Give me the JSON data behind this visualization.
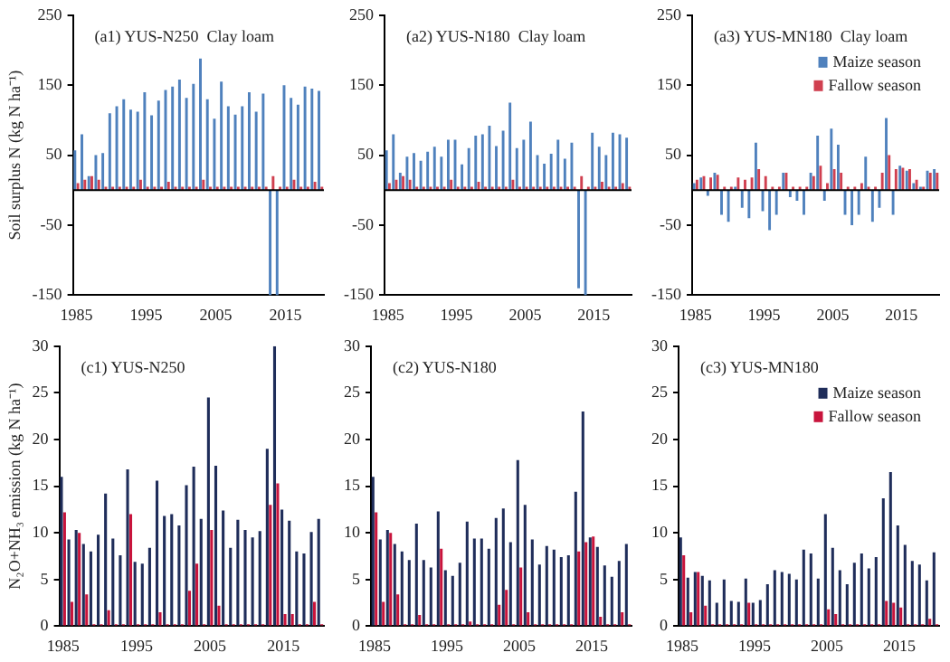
{
  "chart_data": [
    {
      "type": "bar",
      "title": "(a1) YUS-N250  Clay loam",
      "ylabel": "Soil surplus N (kg N ha⁻¹)",
      "categories": [
        "1985",
        null,
        null,
        null,
        null,
        null,
        null,
        null,
        null,
        null,
        "1995",
        null,
        null,
        null,
        null,
        null,
        null,
        null,
        null,
        null,
        "2005",
        null,
        null,
        null,
        null,
        null,
        null,
        null,
        null,
        null,
        "2015",
        null,
        null,
        null,
        null,
        null
      ],
      "ylim": [
        -150,
        250
      ],
      "yticks": [
        -150,
        -50,
        50,
        150,
        250
      ],
      "series": [
        {
          "color": "#4f81bd",
          "values": [
            57,
            80,
            20,
            50,
            53,
            110,
            120,
            130,
            115,
            112,
            140,
            107,
            128,
            143,
            148,
            158,
            132,
            152,
            188,
            130,
            102,
            155,
            120,
            108,
            120,
            140,
            112,
            138,
            -150,
            -150,
            150,
            132,
            122,
            148,
            145,
            142
          ]
        },
        {
          "color": "#d04050",
          "values": [
            10,
            15,
            20,
            15,
            5,
            5,
            5,
            5,
            5,
            15,
            5,
            5,
            5,
            12,
            5,
            5,
            5,
            5,
            15,
            5,
            5,
            5,
            5,
            5,
            5,
            5,
            5,
            5,
            20,
            5,
            5,
            15,
            5,
            5,
            12,
            5
          ]
        }
      ]
    },
    {
      "type": "bar",
      "title": "(a2) YUS-N180  Clay loam",
      "categories": [
        "1985",
        null,
        null,
        null,
        null,
        null,
        null,
        null,
        null,
        null,
        "1995",
        null,
        null,
        null,
        null,
        null,
        null,
        null,
        null,
        null,
        "2005",
        null,
        null,
        null,
        null,
        null,
        null,
        null,
        null,
        null,
        "2015",
        null,
        null,
        null,
        null,
        null
      ],
      "ylim": [
        -150,
        250
      ],
      "yticks": [
        -150,
        -50,
        50,
        150,
        250
      ],
      "series": [
        {
          "color": "#4f81bd",
          "values": [
            57,
            80,
            25,
            48,
            53,
            42,
            55,
            62,
            48,
            72,
            72,
            37,
            60,
            78,
            80,
            92,
            63,
            85,
            125,
            60,
            72,
            98,
            50,
            38,
            52,
            72,
            45,
            68,
            -140,
            -150,
            82,
            62,
            50,
            82,
            80,
            75
          ]
        },
        {
          "color": "#d04050",
          "values": [
            10,
            15,
            20,
            15,
            5,
            5,
            5,
            5,
            5,
            15,
            5,
            5,
            5,
            12,
            5,
            5,
            5,
            5,
            15,
            5,
            5,
            5,
            5,
            5,
            5,
            5,
            5,
            5,
            20,
            5,
            5,
            12,
            5,
            5,
            10,
            5
          ]
        }
      ]
    },
    {
      "type": "bar",
      "title": "(a3) YUS-MN180  Clay loam",
      "categories": [
        "1985",
        null,
        null,
        null,
        null,
        null,
        null,
        null,
        null,
        null,
        "1995",
        null,
        null,
        null,
        null,
        null,
        null,
        null,
        null,
        null,
        "2005",
        null,
        null,
        null,
        null,
        null,
        null,
        null,
        null,
        null,
        "2015",
        null,
        null,
        null,
        null,
        null
      ],
      "ylim": [
        -150,
        250
      ],
      "yticks": [
        -150,
        -50,
        50,
        150,
        250
      ],
      "legend": "top right",
      "series": [
        {
          "name": "Maize season",
          "color": "#4f81bd",
          "values": [
            10,
            18,
            -8,
            25,
            -35,
            -45,
            5,
            -25,
            -40,
            68,
            -30,
            -57,
            -35,
            25,
            -10,
            -15,
            -35,
            25,
            78,
            -15,
            88,
            65,
            -35,
            -50,
            -35,
            48,
            -45,
            -25,
            103,
            -35,
            35,
            28,
            10,
            5,
            28,
            30
          ]
        },
        {
          "name": "Fallow season",
          "color": "#d04050",
          "values": [
            15,
            20,
            18,
            22,
            5,
            5,
            18,
            15,
            18,
            30,
            20,
            5,
            5,
            25,
            5,
            5,
            5,
            20,
            35,
            10,
            30,
            25,
            5,
            5,
            10,
            5,
            5,
            25,
            50,
            30,
            32,
            30,
            15,
            5,
            25,
            25
          ]
        }
      ]
    },
    {
      "type": "bar",
      "title": "(c1) YUS-N250",
      "ylabel": "N₂O+NH₃ emission (kg N ha⁻¹)",
      "categories": [
        "1985",
        null,
        null,
        null,
        null,
        null,
        null,
        null,
        null,
        null,
        "1995",
        null,
        null,
        null,
        null,
        null,
        null,
        null,
        null,
        null,
        "2005",
        null,
        null,
        null,
        null,
        null,
        null,
        null,
        null,
        null,
        "2015",
        null,
        null,
        null,
        null,
        null
      ],
      "ylim": [
        0,
        30
      ],
      "yticks": [
        0,
        5,
        10,
        15,
        20,
        25,
        30
      ],
      "series": [
        {
          "color": "#1f2d5a",
          "values": [
            16,
            9.3,
            10.3,
            8.8,
            8,
            9.8,
            14.2,
            9.4,
            7.6,
            16.8,
            6.9,
            6.7,
            8.4,
            15.6,
            11.8,
            12,
            10.8,
            15.1,
            17.1,
            11.5,
            24.5,
            17.2,
            12.4,
            8.4,
            11.4,
            10.3,
            9.5,
            10.2,
            19,
            30,
            12.5,
            11.3,
            8,
            7.8,
            10.1,
            11.5
          ]
        },
        {
          "color": "#c8143c",
          "values": [
            12.2,
            2.6,
            10,
            3.4,
            0.2,
            0.2,
            1.7,
            0.2,
            0.2,
            12,
            0.2,
            0.2,
            0.2,
            1.5,
            0.2,
            0.2,
            0.2,
            3.8,
            6.7,
            0.2,
            10.3,
            2.2,
            0.2,
            0.2,
            0.2,
            0.2,
            0.2,
            0.2,
            13,
            15.3,
            1.3,
            1.3,
            0.2,
            0.2,
            2.6,
            0.2
          ]
        }
      ]
    },
    {
      "type": "bar",
      "title": "(c2) YUS-N180",
      "categories": [
        "1985",
        null,
        null,
        null,
        null,
        null,
        null,
        null,
        null,
        null,
        "1995",
        null,
        null,
        null,
        null,
        null,
        null,
        null,
        null,
        null,
        "2005",
        null,
        null,
        null,
        null,
        null,
        null,
        null,
        null,
        null,
        "2015",
        null,
        null,
        null,
        null,
        null
      ],
      "ylim": [
        0,
        30
      ],
      "yticks": [
        0,
        5,
        10,
        15,
        20,
        25,
        30
      ],
      "series": [
        {
          "color": "#1f2d5a",
          "values": [
            16,
            9.3,
            10.3,
            8.8,
            8,
            7.1,
            11,
            7.1,
            6.3,
            12.3,
            6,
            5.4,
            6.8,
            11.2,
            9.4,
            9.4,
            8.3,
            11.6,
            12.6,
            9,
            17.8,
            13,
            9.3,
            6.6,
            8.6,
            8.2,
            7.4,
            7.6,
            14.4,
            23,
            9.5,
            8.5,
            6.5,
            5.3,
            7,
            8.8
          ]
        },
        {
          "color": "#c8143c",
          "values": [
            12.2,
            2.6,
            10,
            3.4,
            0.2,
            0.2,
            1.2,
            0.2,
            0.2,
            8.3,
            0.2,
            0.2,
            0.2,
            0.5,
            0.2,
            0.2,
            0.2,
            2.3,
            3.9,
            0.2,
            6.3,
            1.5,
            0.2,
            0.2,
            0.2,
            0.2,
            0.2,
            0.2,
            8,
            9,
            9.6,
            1,
            0.2,
            0.2,
            1.5,
            0.2
          ]
        }
      ]
    },
    {
      "type": "bar",
      "title": "(c3) YUS-MN180",
      "categories": [
        "1985",
        null,
        null,
        null,
        null,
        null,
        null,
        null,
        null,
        null,
        "1995",
        null,
        null,
        null,
        null,
        null,
        null,
        null,
        null,
        null,
        "2005",
        null,
        null,
        null,
        null,
        null,
        null,
        null,
        null,
        null,
        "2015",
        null,
        null,
        null,
        null,
        null
      ],
      "ylim": [
        0,
        30
      ],
      "yticks": [
        0,
        5,
        10,
        15,
        20,
        25,
        30
      ],
      "legend": "top right",
      "series": [
        {
          "name": "Maize season",
          "color": "#1f2d5a",
          "values": [
            9.5,
            5.2,
            5.8,
            5.4,
            4.9,
            2.5,
            5,
            2.7,
            2.6,
            5.1,
            2.5,
            2.8,
            4.5,
            6,
            5.8,
            5.6,
            5,
            8.2,
            7.8,
            5.1,
            12,
            8.4,
            6,
            4.5,
            6.8,
            7.8,
            6.2,
            7.4,
            13.7,
            16.5,
            10.8,
            8.7,
            7,
            6.6,
            4.9,
            7.9
          ]
        },
        {
          "name": "Fallow season",
          "color": "#c8143c",
          "values": [
            7.6,
            1.5,
            5.8,
            2.2,
            0.2,
            0.2,
            0.2,
            0.2,
            0.2,
            2.5,
            0.2,
            0.2,
            0.2,
            0.2,
            0.2,
            0.2,
            0.2,
            0.2,
            0.2,
            0.2,
            1.8,
            1.3,
            0.2,
            0.2,
            0.2,
            0.2,
            0.2,
            0.2,
            2.7,
            2.5,
            2,
            0.2,
            0.2,
            0.2,
            0.8,
            0.2
          ]
        }
      ]
    }
  ]
}
